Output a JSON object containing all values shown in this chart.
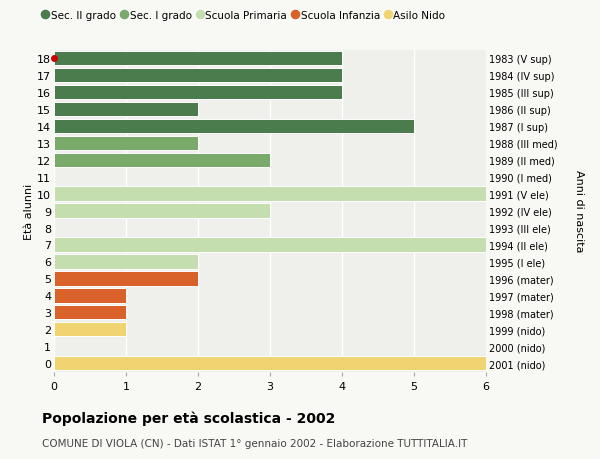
{
  "ages": [
    18,
    17,
    16,
    15,
    14,
    13,
    12,
    11,
    10,
    9,
    8,
    7,
    6,
    5,
    4,
    3,
    2,
    1,
    0
  ],
  "years": [
    "1983 (V sup)",
    "1984 (IV sup)",
    "1985 (III sup)",
    "1986 (II sup)",
    "1987 (I sup)",
    "1988 (III med)",
    "1989 (II med)",
    "1990 (I med)",
    "1991 (V ele)",
    "1992 (IV ele)",
    "1993 (III ele)",
    "1994 (II ele)",
    "1995 (I ele)",
    "1996 (mater)",
    "1997 (mater)",
    "1998 (mater)",
    "1999 (nido)",
    "2000 (nido)",
    "2001 (nido)"
  ],
  "values": [
    4,
    4,
    4,
    2,
    5,
    2,
    3,
    0,
    6,
    3,
    0,
    6,
    2,
    2,
    1,
    1,
    1,
    0,
    6
  ],
  "colors": [
    "#4a7c4e",
    "#4a7c4e",
    "#4a7c4e",
    "#4a7c4e",
    "#4a7c4e",
    "#7aaa6a",
    "#7aaa6a",
    "#7aaa6a",
    "#c5deb0",
    "#c5deb0",
    "#c5deb0",
    "#c5deb0",
    "#c5deb0",
    "#d9622a",
    "#d9622a",
    "#d9622a",
    "#f0d472",
    "#f0d472",
    "#f0d472"
  ],
  "legend_labels": [
    "Sec. II grado",
    "Sec. I grado",
    "Scuola Primaria",
    "Scuola Infanzia",
    "Asilo Nido"
  ],
  "legend_colors": [
    "#4a7c4e",
    "#7aaa6a",
    "#c5deb0",
    "#d9622a",
    "#f0d472"
  ],
  "ylabel_left": "Età alunni",
  "ylabel_right": "Anni di nascita",
  "title": "Popolazione per età scolastica - 2002",
  "subtitle": "COMUNE DI VIOLA (CN) - Dati ISTAT 1° gennaio 2002 - Elaborazione TUTTITALIA.IT",
  "xlim": [
    0,
    6
  ],
  "bg_color": "#f8f8f5",
  "plot_bg_color": "#efefeb",
  "red_dot_age": 18,
  "grid_color": "#ffffff"
}
